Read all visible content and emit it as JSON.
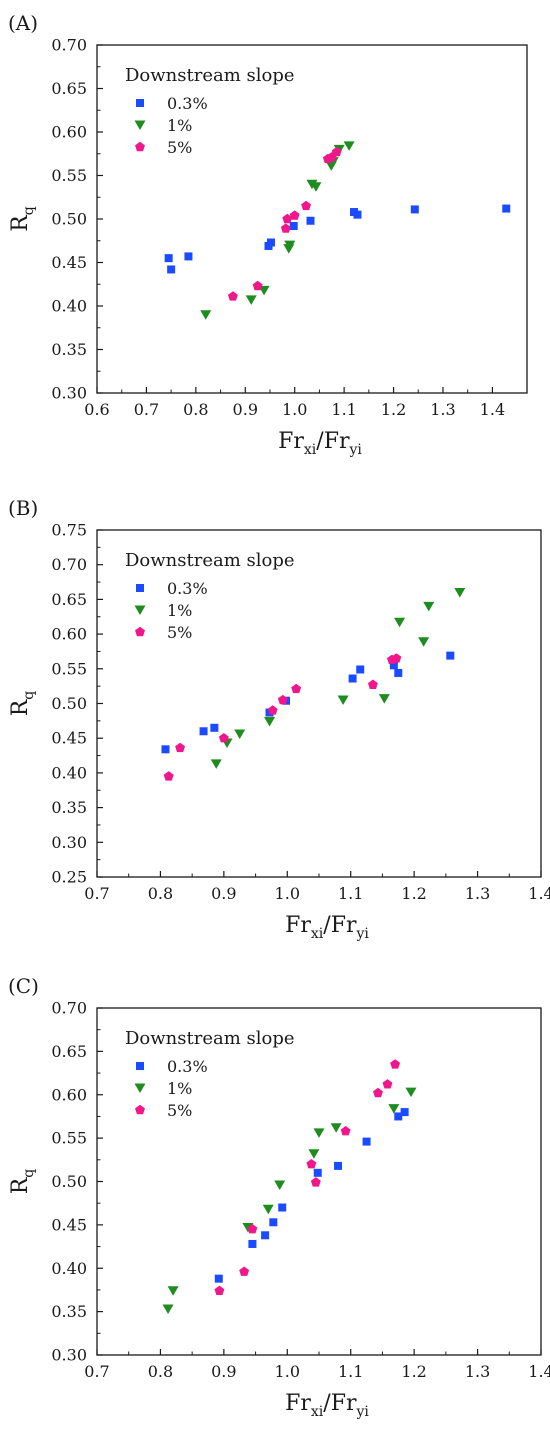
{
  "colors": {
    "s03": "#1a4bff",
    "s1": "#1e8c1e",
    "s5": "#f0168c"
  },
  "chart_data": [
    {
      "type": "scatter",
      "panel_label": "(A)",
      "xlabel": "Fr",
      "xlabel_sub1": "xi",
      "xlabel_mid": "/Fr",
      "xlabel_sub2": "yi",
      "ylabel": "R",
      "ylabel_sub": "q",
      "xlim": [
        0.6,
        1.47
      ],
      "ylim": [
        0.3,
        0.7
      ],
      "xticks": [
        "0.6",
        "0.7",
        "0.8",
        "0.9",
        "1.0",
        "1.1",
        "1.2",
        "1.3",
        "1.4"
      ],
      "yticks": [
        "0.30",
        "0.35",
        "0.40",
        "0.45",
        "0.50",
        "0.55",
        "0.60",
        "0.65",
        "0.70"
      ],
      "legend_title": "Downstream slope",
      "legend_position": "top-left",
      "series": [
        {
          "name": "0.3%",
          "marker": "square",
          "color_key": "s03",
          "points": [
            [
              0.745,
              0.455
            ],
            [
              0.75,
              0.442
            ],
            [
              0.785,
              0.457
            ],
            [
              0.947,
              0.469
            ],
            [
              0.952,
              0.473
            ],
            [
              0.998,
              0.492
            ],
            [
              1.032,
              0.498
            ],
            [
              1.12,
              0.508
            ],
            [
              1.127,
              0.505
            ],
            [
              1.243,
              0.511
            ],
            [
              1.428,
              0.512
            ]
          ]
        },
        {
          "name": "1%",
          "marker": "triangle-down",
          "color_key": "s1",
          "points": [
            [
              0.82,
              0.39
            ],
            [
              0.912,
              0.407
            ],
            [
              0.938,
              0.418
            ],
            [
              0.988,
              0.466
            ],
            [
              0.99,
              0.47
            ],
            [
              1.035,
              0.54
            ],
            [
              1.043,
              0.537
            ],
            [
              1.074,
              0.561
            ],
            [
              1.078,
              0.566
            ],
            [
              1.09,
              0.58
            ],
            [
              1.11,
              0.584
            ]
          ]
        },
        {
          "name": "5%",
          "marker": "pentagon",
          "color_key": "s5",
          "points": [
            [
              0.875,
              0.411
            ],
            [
              0.925,
              0.423
            ],
            [
              0.982,
              0.489
            ],
            [
              0.985,
              0.5
            ],
            [
              1.0,
              0.504
            ],
            [
              1.023,
              0.515
            ],
            [
              1.067,
              0.569
            ],
            [
              1.075,
              0.571
            ],
            [
              1.085,
              0.577
            ]
          ]
        }
      ]
    },
    {
      "type": "scatter",
      "panel_label": "(B)",
      "xlabel": "Fr",
      "xlabel_sub1": "xi",
      "xlabel_mid": "/Fr",
      "xlabel_sub2": "yi",
      "ylabel": "R",
      "ylabel_sub": "q",
      "xlim": [
        0.7,
        1.4
      ],
      "ylim": [
        0.25,
        0.75
      ],
      "xticks": [
        "0.7",
        "0.8",
        "0.9",
        "1.0",
        "1.1",
        "1.2",
        "1.3",
        "1.4"
      ],
      "yticks": [
        "0.25",
        "0.30",
        "0.35",
        "0.40",
        "0.45",
        "0.50",
        "0.55",
        "0.60",
        "0.65",
        "0.70",
        "0.75"
      ],
      "legend_title": "Downstream slope",
      "legend_position": "top-left",
      "series": [
        {
          "name": "0.3%",
          "marker": "square",
          "color_key": "s03",
          "points": [
            [
              0.808,
              0.434
            ],
            [
              0.868,
              0.46
            ],
            [
              0.885,
              0.465
            ],
            [
              0.972,
              0.487
            ],
            [
              0.998,
              0.504
            ],
            [
              1.103,
              0.536
            ],
            [
              1.115,
              0.549
            ],
            [
              1.168,
              0.555
            ],
            [
              1.175,
              0.544
            ],
            [
              1.257,
              0.569
            ]
          ]
        },
        {
          "name": "1%",
          "marker": "triangle-down",
          "color_key": "s1",
          "points": [
            [
              0.888,
              0.413
            ],
            [
              0.905,
              0.443
            ],
            [
              0.925,
              0.456
            ],
            [
              0.972,
              0.474
            ],
            [
              1.088,
              0.505
            ],
            [
              1.153,
              0.507
            ],
            [
              1.177,
              0.617
            ],
            [
              1.215,
              0.589
            ],
            [
              1.223,
              0.64
            ],
            [
              1.272,
              0.66
            ]
          ]
        },
        {
          "name": "5%",
          "marker": "pentagon",
          "color_key": "s5",
          "points": [
            [
              0.813,
              0.395
            ],
            [
              0.831,
              0.436
            ],
            [
              0.9,
              0.45
            ],
            [
              0.977,
              0.49
            ],
            [
              0.993,
              0.505
            ],
            [
              1.014,
              0.521
            ],
            [
              1.135,
              0.527
            ],
            [
              1.165,
              0.563
            ],
            [
              1.172,
              0.565
            ]
          ]
        }
      ]
    },
    {
      "type": "scatter",
      "panel_label": "(C)",
      "xlabel": "Fr",
      "xlabel_sub1": "xi",
      "xlabel_mid": "/Fr",
      "xlabel_sub2": "yi",
      "ylabel": "R",
      "ylabel_sub": "q",
      "xlim": [
        0.7,
        1.4
      ],
      "ylim": [
        0.3,
        0.7
      ],
      "xticks": [
        "0.7",
        "0.8",
        "0.9",
        "1.0",
        "1.1",
        "1.2",
        "1.3",
        "1.4"
      ],
      "yticks": [
        "0.30",
        "0.35",
        "0.40",
        "0.45",
        "0.50",
        "0.55",
        "0.60",
        "0.65",
        "0.70"
      ],
      "legend_title": "Downstream slope",
      "legend_position": "top-left",
      "series": [
        {
          "name": "0.3%",
          "marker": "square",
          "color_key": "s03",
          "points": [
            [
              0.892,
              0.388
            ],
            [
              0.945,
              0.428
            ],
            [
              0.965,
              0.438
            ],
            [
              0.978,
              0.453
            ],
            [
              0.992,
              0.47
            ],
            [
              1.048,
              0.51
            ],
            [
              1.08,
              0.518
            ],
            [
              1.125,
              0.546
            ],
            [
              1.175,
              0.575
            ],
            [
              1.185,
              0.58
            ]
          ]
        },
        {
          "name": "1%",
          "marker": "triangle-down",
          "color_key": "s1",
          "points": [
            [
              0.812,
              0.353
            ],
            [
              0.82,
              0.374
            ],
            [
              0.938,
              0.447
            ],
            [
              0.97,
              0.468
            ],
            [
              0.988,
              0.496
            ],
            [
              1.042,
              0.532
            ],
            [
              1.05,
              0.556
            ],
            [
              1.077,
              0.562
            ],
            [
              1.168,
              0.584
            ],
            [
              1.195,
              0.603
            ]
          ]
        },
        {
          "name": "5%",
          "marker": "pentagon",
          "color_key": "s5",
          "points": [
            [
              0.893,
              0.374
            ],
            [
              0.932,
              0.396
            ],
            [
              0.945,
              0.445
            ],
            [
              1.038,
              0.52
            ],
            [
              1.045,
              0.499
            ],
            [
              1.092,
              0.558
            ],
            [
              1.143,
              0.602
            ],
            [
              1.158,
              0.612
            ],
            [
              1.17,
              0.635
            ]
          ]
        }
      ]
    }
  ]
}
